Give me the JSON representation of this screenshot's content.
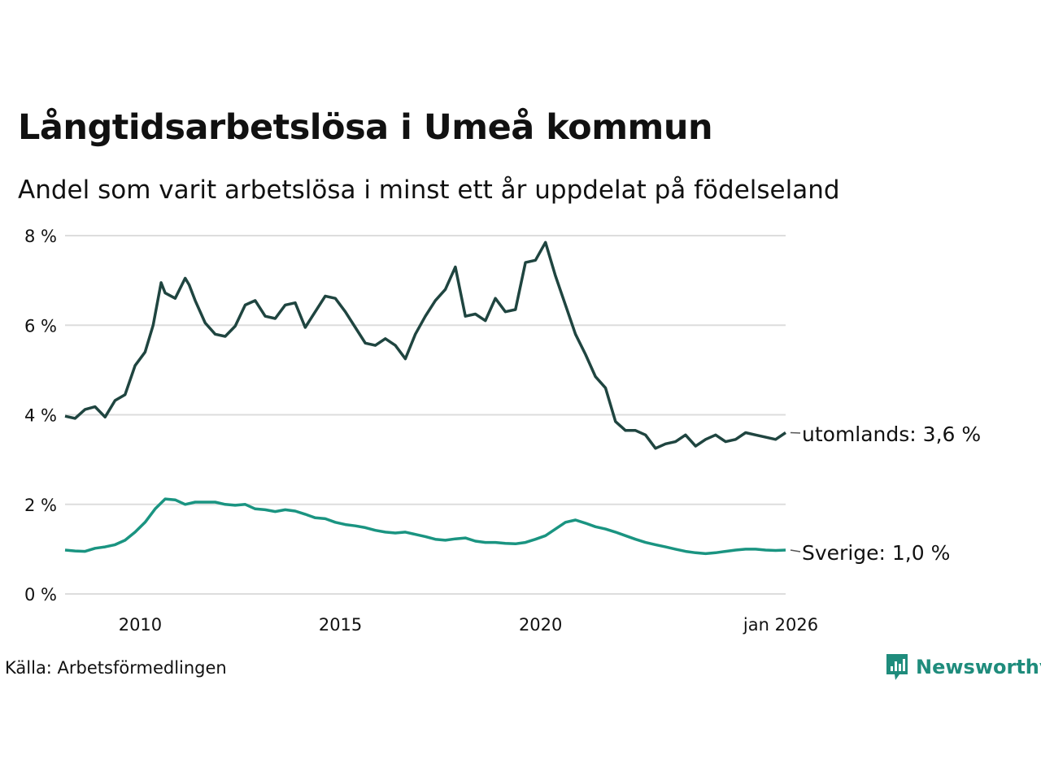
{
  "title": "Långtidsarbetslösa i Umeå kommun",
  "subtitle": "Andel som varit arbetslösa i minst ett år uppdelat på födelseland",
  "source": "Källa: Arbetsförmedlingen",
  "brand": "Newsworthy",
  "colors": {
    "utomlands": "#1f4540",
    "sverige": "#1a9481",
    "grid": "#dddddd",
    "brand": "#1f8c7c"
  },
  "chart_data": {
    "type": "line",
    "title": "Långtidsarbetslösa i Umeå kommun",
    "xlabel": "",
    "ylabel": "",
    "xlim": [
      2008.0,
      2026.0
    ],
    "ylim": [
      0,
      8
    ],
    "y_ticks": [
      0,
      2,
      4,
      6,
      8
    ],
    "y_tick_labels": [
      "0 %",
      "2 %",
      "4 %",
      "6 %",
      "8 %"
    ],
    "x_ticks": [
      2010,
      2015,
      2020,
      2026.0
    ],
    "x_tick_labels": [
      "2010",
      "2015",
      "2020",
      "jan 2026"
    ],
    "grid": true,
    "series": [
      {
        "name": "utomlands",
        "end_label": "utomlands: 3,6 %",
        "x": [
          2008.0,
          2008.25,
          2008.5,
          2008.75,
          2009.0,
          2009.25,
          2009.5,
          2009.75,
          2010.0,
          2010.2,
          2010.4,
          2010.5,
          2010.75,
          2011.0,
          2011.1,
          2011.25,
          2011.5,
          2011.75,
          2012.0,
          2012.25,
          2012.5,
          2012.75,
          2013.0,
          2013.25,
          2013.5,
          2013.75,
          2014.0,
          2014.25,
          2014.5,
          2014.75,
          2015.0,
          2015.25,
          2015.5,
          2015.75,
          2016.0,
          2016.25,
          2016.5,
          2016.75,
          2017.0,
          2017.25,
          2017.5,
          2017.75,
          2018.0,
          2018.25,
          2018.5,
          2018.75,
          2019.0,
          2019.25,
          2019.5,
          2019.75,
          2020.0,
          2020.25,
          2020.5,
          2020.75,
          2021.0,
          2021.25,
          2021.5,
          2021.75,
          2022.0,
          2022.25,
          2022.5,
          2022.75,
          2023.0,
          2023.25,
          2023.5,
          2023.75,
          2024.0,
          2024.25,
          2024.5,
          2024.75,
          2025.0,
          2025.25,
          2025.5,
          2025.75,
          2026.0
        ],
        "values": [
          3.97,
          3.92,
          4.12,
          4.18,
          3.95,
          4.32,
          4.45,
          5.1,
          5.4,
          6.0,
          6.95,
          6.72,
          6.6,
          7.05,
          6.9,
          6.55,
          6.05,
          5.8,
          5.75,
          5.98,
          6.45,
          6.55,
          6.2,
          6.15,
          6.45,
          6.5,
          5.95,
          6.3,
          6.65,
          6.6,
          6.3,
          5.95,
          5.6,
          5.55,
          5.7,
          5.55,
          5.25,
          5.8,
          6.2,
          6.55,
          6.8,
          7.3,
          6.2,
          6.25,
          6.1,
          6.6,
          6.3,
          6.35,
          7.4,
          7.45,
          7.85,
          7.1,
          6.45,
          5.8,
          5.35,
          4.85,
          4.6,
          3.85,
          3.65,
          3.65,
          3.55,
          3.25,
          3.35,
          3.4,
          3.55,
          3.3,
          3.45,
          3.55,
          3.4,
          3.45,
          3.6,
          3.55,
          3.5,
          3.45,
          3.6
        ]
      },
      {
        "name": "Sverige",
        "end_label": "Sverige: 1,0 %",
        "x": [
          2008.0,
          2008.25,
          2008.5,
          2008.75,
          2009.0,
          2009.25,
          2009.5,
          2009.75,
          2010.0,
          2010.25,
          2010.5,
          2010.75,
          2011.0,
          2011.25,
          2011.5,
          2011.75,
          2012.0,
          2012.25,
          2012.5,
          2012.75,
          2013.0,
          2013.25,
          2013.5,
          2013.75,
          2014.0,
          2014.25,
          2014.5,
          2014.75,
          2015.0,
          2015.25,
          2015.5,
          2015.75,
          2016.0,
          2016.25,
          2016.5,
          2016.75,
          2017.0,
          2017.25,
          2017.5,
          2017.75,
          2018.0,
          2018.25,
          2018.5,
          2018.75,
          2019.0,
          2019.25,
          2019.5,
          2019.75,
          2020.0,
          2020.25,
          2020.5,
          2020.75,
          2021.0,
          2021.25,
          2021.5,
          2021.75,
          2022.0,
          2022.25,
          2022.5,
          2022.75,
          2023.0,
          2023.25,
          2023.5,
          2023.75,
          2024.0,
          2024.25,
          2024.5,
          2024.75,
          2025.0,
          2025.25,
          2025.5,
          2025.75,
          2026.0
        ],
        "values": [
          0.98,
          0.96,
          0.95,
          1.02,
          1.05,
          1.1,
          1.2,
          1.38,
          1.6,
          1.9,
          2.12,
          2.1,
          2.0,
          2.05,
          2.05,
          2.05,
          2.0,
          1.98,
          2.0,
          1.9,
          1.88,
          1.84,
          1.88,
          1.85,
          1.78,
          1.7,
          1.68,
          1.6,
          1.55,
          1.52,
          1.48,
          1.42,
          1.38,
          1.36,
          1.38,
          1.33,
          1.28,
          1.22,
          1.2,
          1.23,
          1.25,
          1.18,
          1.15,
          1.15,
          1.13,
          1.12,
          1.15,
          1.22,
          1.3,
          1.45,
          1.6,
          1.65,
          1.58,
          1.5,
          1.45,
          1.38,
          1.3,
          1.22,
          1.15,
          1.1,
          1.05,
          1.0,
          0.95,
          0.92,
          0.9,
          0.92,
          0.95,
          0.98,
          1.0,
          1.0,
          0.98,
          0.97,
          0.98
        ]
      }
    ]
  }
}
